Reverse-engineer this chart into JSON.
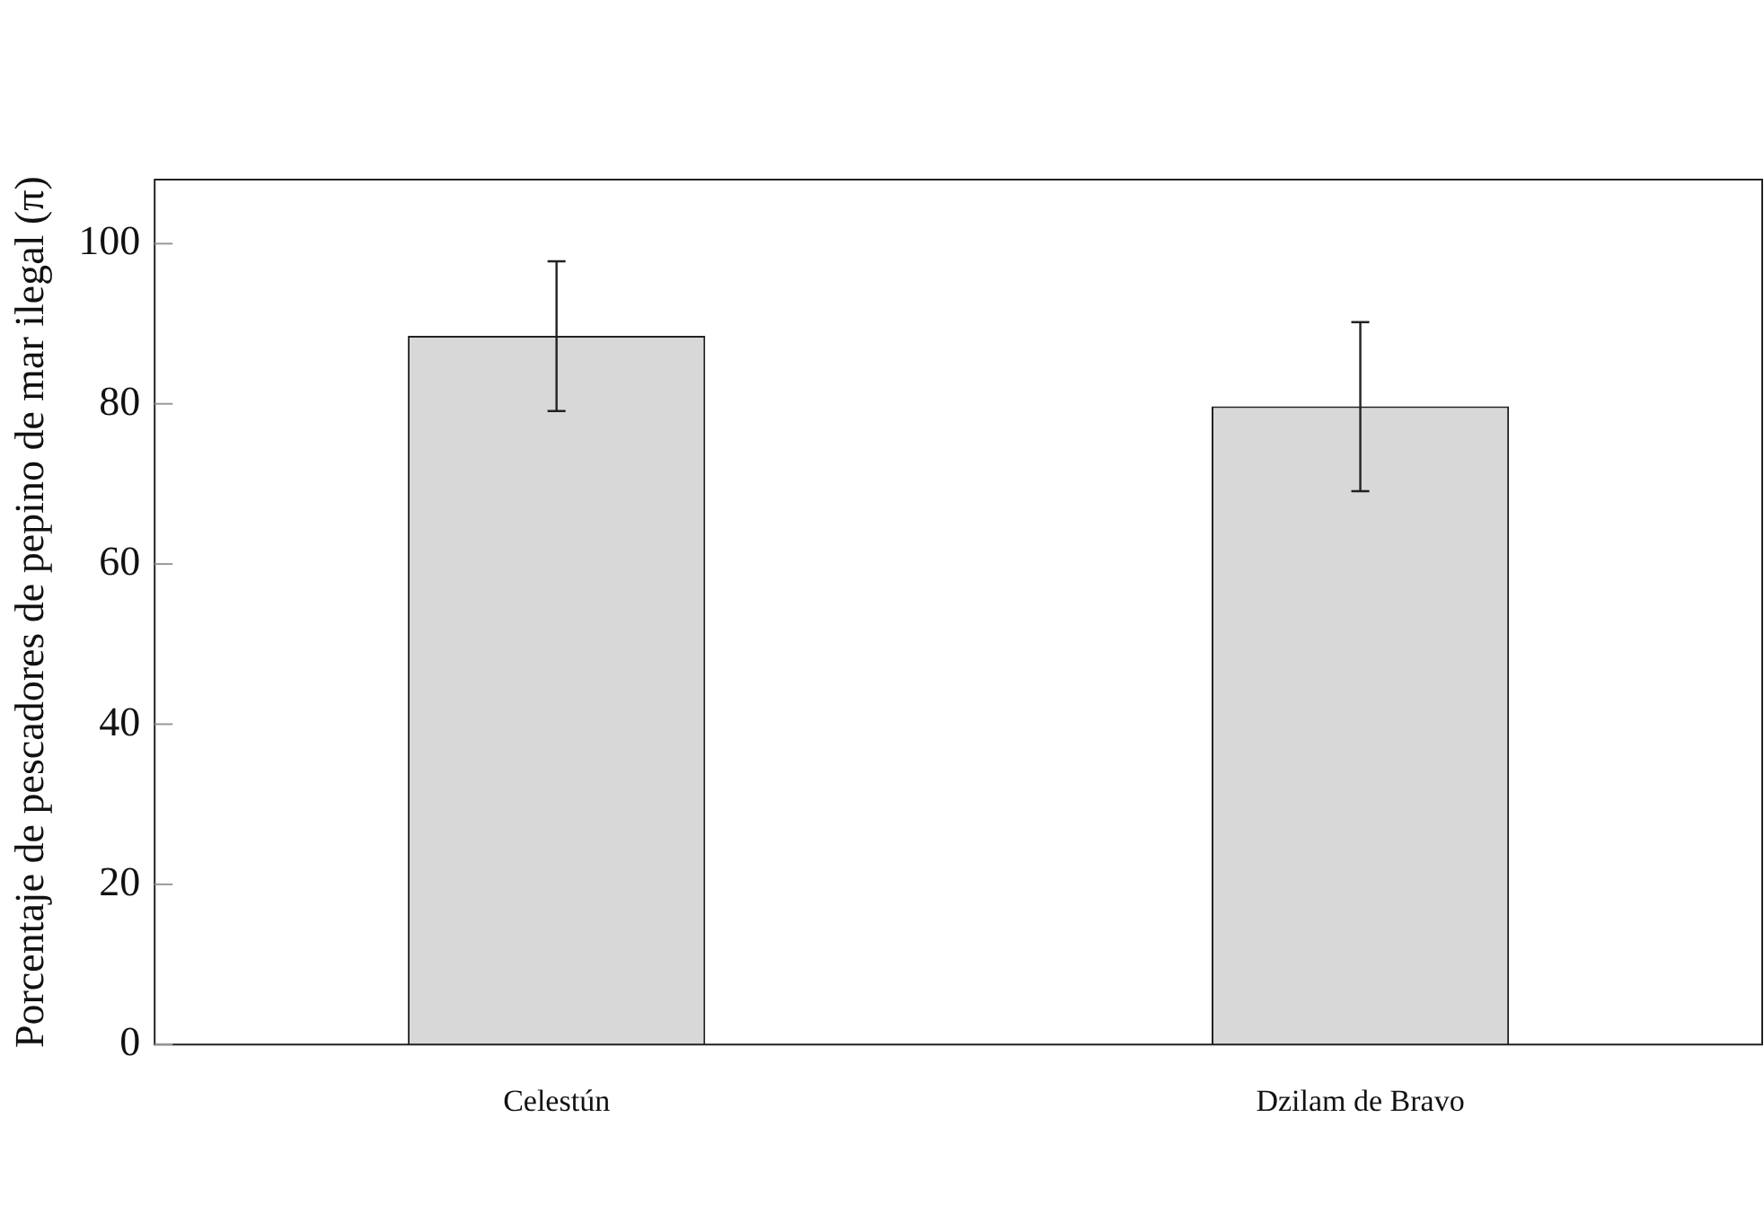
{
  "chart_data": {
    "type": "bar",
    "ylabel": "Porcentaje de pescadores de pepino de mar ilegal (π)",
    "categories": [
      "Celestún",
      "Dzilam de Bravo"
    ],
    "values": [
      88.5,
      79.7
    ],
    "errors": [
      [
        79.1,
        97.8
      ],
      [
        69.1,
        90.2
      ]
    ],
    "color": "#d8d8d8",
    "ylim": [
      0,
      108
    ],
    "yticks": [
      0,
      20,
      40,
      60,
      80,
      100
    ],
    "grid": false
  }
}
